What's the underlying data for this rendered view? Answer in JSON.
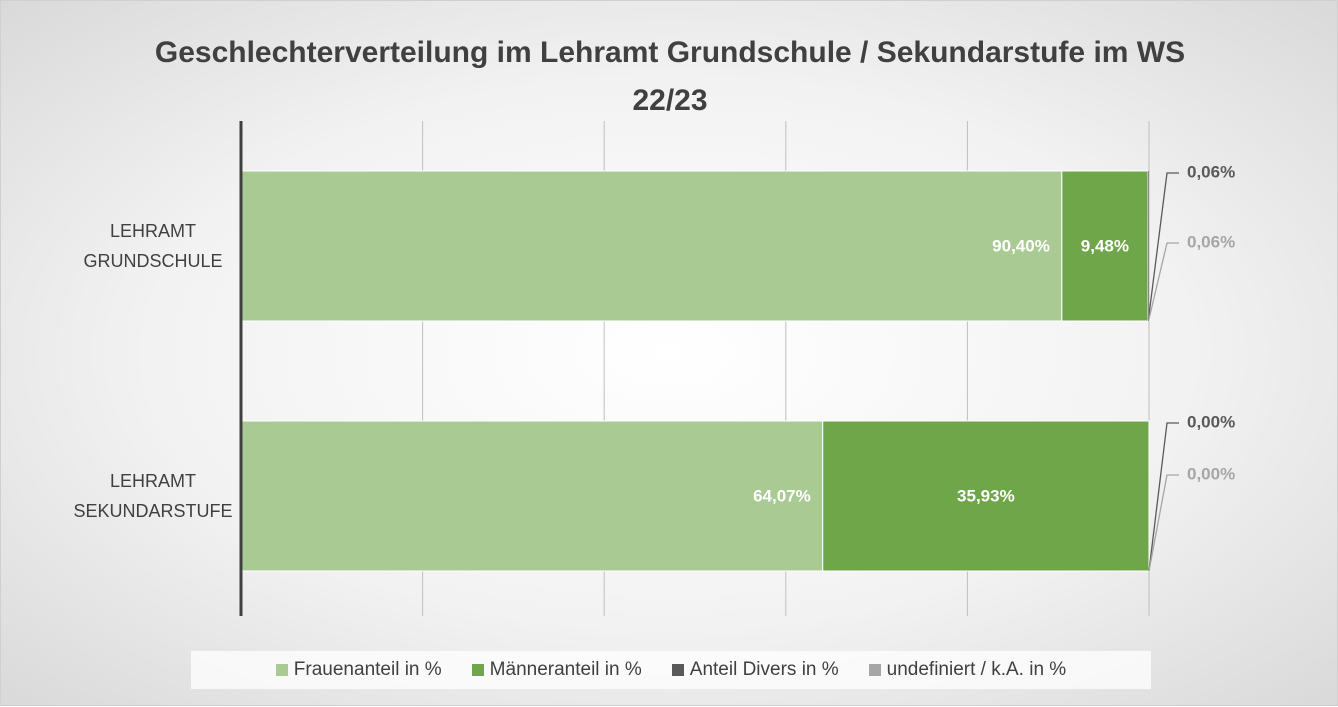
{
  "chart_data": {
    "type": "stacked_barh",
    "title": "Geschlechterverteilung im Lehramt Grundschule / Sekundarstufe im WS 22/23",
    "categories": [
      "LEHRAMT GRUNDSCHULE",
      "LEHRAMT SEKUNDARSTUFE"
    ],
    "series": [
      {
        "name": "Frauenanteil in %",
        "color": "#a9cb93",
        "values": [
          90.4,
          64.07
        ],
        "value_labels": [
          "90,40%",
          "64,07%"
        ]
      },
      {
        "name": "Männeranteil in %",
        "color": "#70a64a",
        "values": [
          9.48,
          35.93
        ],
        "value_labels": [
          "9,48%",
          "35,93%"
        ]
      },
      {
        "name": "Anteil Divers in %",
        "color": "#595959",
        "values": [
          0.06,
          0.0
        ],
        "value_labels": [
          "0,06%",
          "0,00%"
        ]
      },
      {
        "name": "undefiniert / k.A. in %",
        "color": "#a6a6a6",
        "values": [
          0.06,
          0.0
        ],
        "value_labels": [
          "0,06%",
          "0,00%"
        ]
      }
    ],
    "xlim": [
      0,
      100
    ],
    "xticks": [
      0,
      20,
      40,
      60,
      80,
      100
    ],
    "grid": true,
    "legend": "bottom"
  }
}
